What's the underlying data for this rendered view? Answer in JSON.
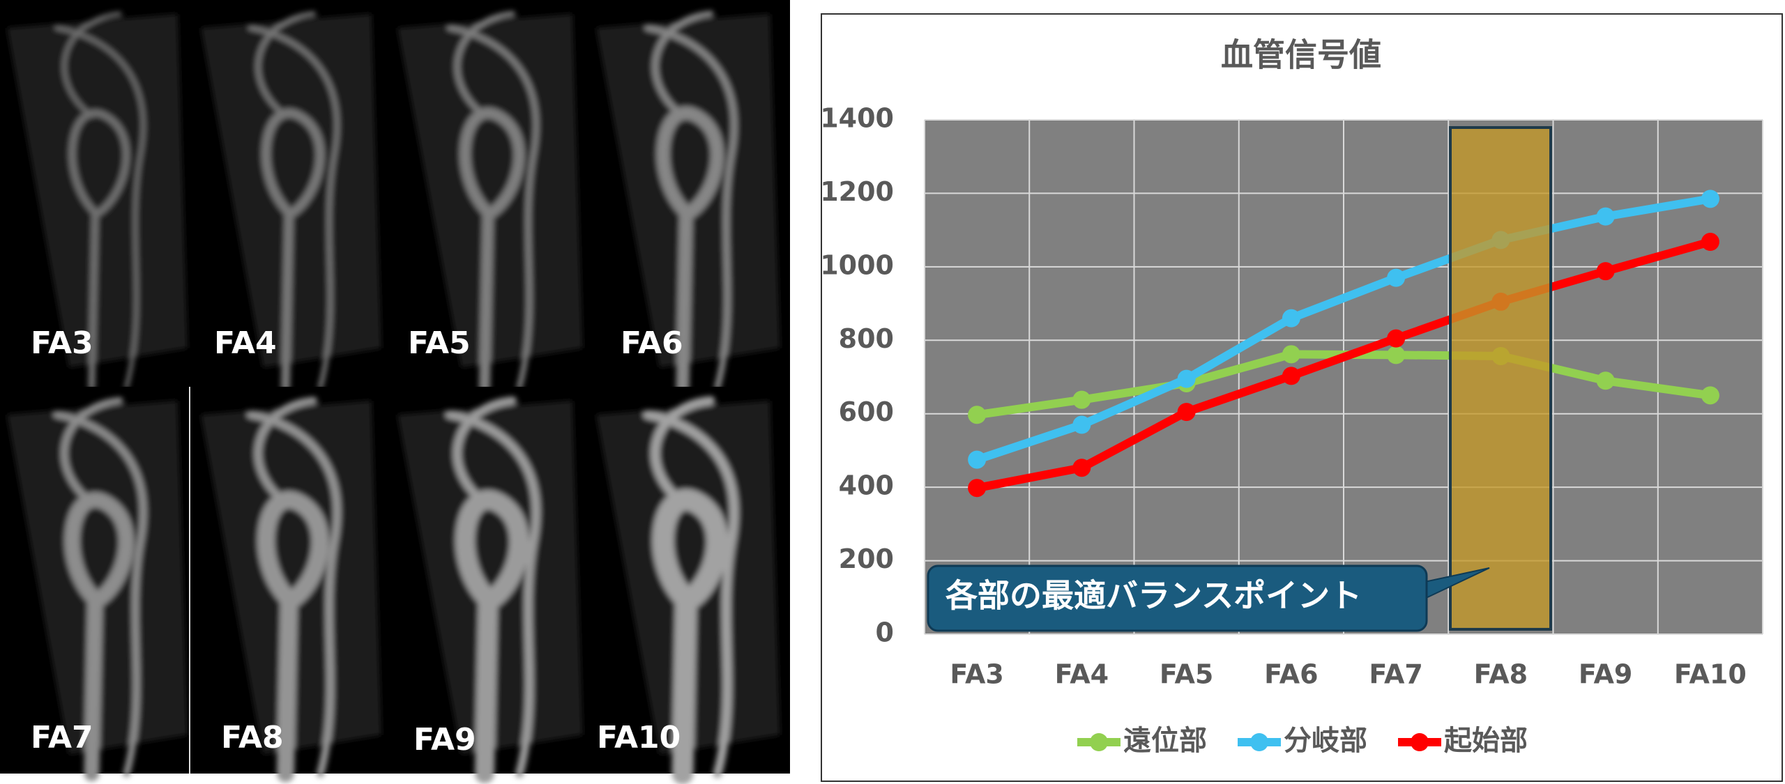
{
  "images": [
    {
      "label": "FA3"
    },
    {
      "label": "FA4"
    },
    {
      "label": "FA5"
    },
    {
      "label": "FA6"
    },
    {
      "label": "FA7"
    },
    {
      "label": "FA8"
    },
    {
      "label": "FA9"
    },
    {
      "label": "FA10"
    }
  ],
  "chart_data": {
    "type": "line",
    "title": "血管信号値",
    "categories": [
      "FA3",
      "FA4",
      "FA5",
      "FA6",
      "FA7",
      "FA8",
      "FA9",
      "FA10"
    ],
    "series": [
      {
        "name": "遠位部",
        "color": "#92d050",
        "values": [
          597,
          638,
          683,
          762,
          760,
          757,
          690,
          650
        ]
      },
      {
        "name": "分岐部",
        "color": "#3fc0f0",
        "values": [
          475,
          570,
          695,
          860,
          970,
          1073,
          1137,
          1185
        ]
      },
      {
        "name": "起始部",
        "color": "#ff0000",
        "values": [
          398,
          453,
          605,
          703,
          805,
          905,
          988,
          1068
        ]
      }
    ],
    "ylim": [
      0,
      1400
    ],
    "yticks": [
      0,
      200,
      400,
      600,
      800,
      1000,
      1200,
      1400
    ],
    "grid": true,
    "annotation": "各部の最適バランスポイント",
    "legend": "bottom"
  }
}
